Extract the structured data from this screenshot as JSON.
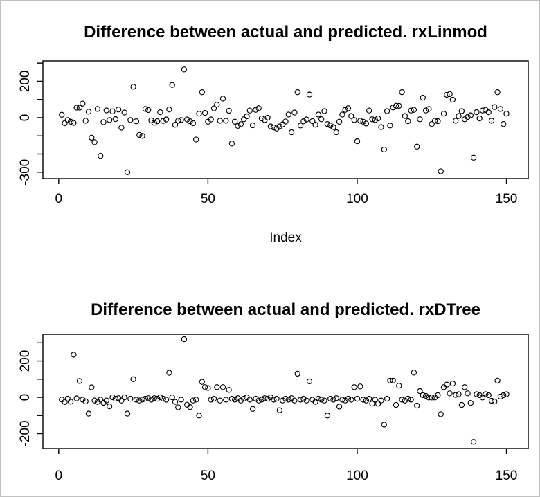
{
  "figure": {
    "background": "#ffffff",
    "border_color": "#c0c0c0",
    "point_color": "#000000",
    "axis_color": "#000000"
  },
  "chart_data": [
    {
      "type": "scatter",
      "title": "Difference between actual and predicted. rxLinmod",
      "xlabel": "Index",
      "ylabel": "",
      "marker": "open-circle",
      "grid": false,
      "legend": false,
      "x_start": 1,
      "x_ticks": [
        0,
        50,
        100,
        150
      ],
      "y_ticks": [
        300,
        200,
        100,
        0,
        -100,
        -200,
        -300
      ],
      "y_tick_labeled": [
        200,
        0,
        -300
      ],
      "xlim": [
        -5.3,
        157.3
      ],
      "ylim": [
        -335,
        312
      ],
      "values": [
        16,
        -30,
        -13,
        -22,
        -29,
        55,
        55,
        77,
        -17,
        33,
        -110,
        -135,
        48,
        -210,
        -25,
        40,
        -13,
        35,
        -8,
        45,
        -55,
        28,
        -300,
        -13,
        170,
        -20,
        -95,
        -100,
        48,
        42,
        -15,
        -28,
        -20,
        30,
        -18,
        -10,
        45,
        180,
        -39,
        -17,
        -13,
        265,
        -10,
        -20,
        -30,
        -120,
        22,
        140,
        26,
        -22,
        -10,
        51,
        72,
        -17,
        105,
        -17,
        38,
        -142,
        -22,
        -45,
        -36,
        -9,
        7,
        39,
        -42,
        43,
        52,
        -4,
        -13,
        0,
        -48,
        -54,
        -60,
        -48,
        -37,
        -21,
        17,
        -80,
        28,
        140,
        -43,
        -20,
        -10,
        127,
        -19,
        -39,
        17,
        -9,
        36,
        -35,
        -43,
        -52,
        -80,
        -22,
        17,
        43,
        52,
        9,
        -13,
        -130,
        -17,
        -22,
        -32,
        39,
        -9,
        -13,
        -4,
        -52,
        -175,
        36,
        -43,
        56,
        65,
        65,
        140,
        9,
        -19,
        39,
        43,
        -159,
        -9,
        110,
        39,
        48,
        -35,
        -17,
        -19,
        -295,
        22,
        126,
        130,
        99,
        -17,
        9,
        36,
        -9,
        4,
        13,
        -220,
        30,
        -4,
        39,
        43,
        30,
        -17,
        58,
        140,
        48,
        -35,
        22
      ]
    },
    {
      "type": "scatter",
      "title": "Difference between actual and predicted. rxDTree",
      "xlabel": "",
      "ylabel": "",
      "marker": "open-circle",
      "grid": false,
      "legend": false,
      "x_start": 1,
      "x_ticks": [
        0,
        50,
        100,
        150
      ],
      "y_ticks": [
        300,
        200,
        100,
        0,
        -100,
        -200
      ],
      "y_tick_labeled": [
        200,
        0,
        -200
      ],
      "xlim": [
        -5.3,
        157.3
      ],
      "ylim": [
        -282,
        347
      ],
      "values": [
        -12,
        -26,
        -8,
        -24,
        235,
        -6,
        90,
        -13,
        -22,
        -90,
        55,
        -18,
        -25,
        -13,
        -30,
        -18,
        -50,
        0,
        -8,
        -5,
        -18,
        0,
        -90,
        -8,
        100,
        -13,
        -18,
        -13,
        -8,
        -5,
        -13,
        -5,
        -8,
        0,
        -8,
        -13,
        135,
        0,
        -25,
        -55,
        -13,
        320,
        -41,
        -54,
        -18,
        -13,
        -100,
        85,
        56,
        51,
        -13,
        -8,
        56,
        -18,
        56,
        -13,
        41,
        -8,
        -13,
        -5,
        -18,
        -8,
        0,
        -13,
        -64,
        -8,
        -18,
        -13,
        -5,
        -8,
        0,
        -13,
        -8,
        -71,
        -18,
        -8,
        -13,
        -5,
        -18,
        130,
        -13,
        -8,
        -18,
        88,
        -13,
        -25,
        -8,
        -13,
        -18,
        -100,
        -8,
        -13,
        -5,
        -51,
        -13,
        -18,
        -8,
        -13,
        56,
        -8,
        60,
        -13,
        -18,
        -8,
        -35,
        -13,
        -35,
        -18,
        -150,
        -8,
        92,
        92,
        -42,
        64,
        -13,
        -18,
        -8,
        -13,
        136,
        -46,
        34,
        12,
        8,
        -1,
        -1,
        -1,
        12,
        -93,
        56,
        70,
        22,
        76,
        13,
        17,
        -42,
        56,
        22,
        -31,
        -245,
        17,
        12,
        -1,
        17,
        12,
        -19,
        -23,
        92,
        4,
        12,
        17
      ]
    }
  ]
}
